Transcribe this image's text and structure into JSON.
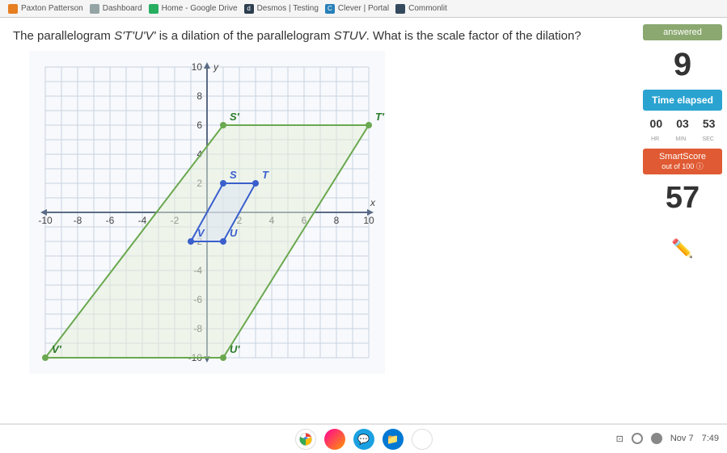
{
  "tabs": [
    {
      "label": "Paxton Patterson"
    },
    {
      "label": "Dashboard"
    },
    {
      "label": "Home - Google Drive"
    },
    {
      "label": "Desmos | Testing"
    },
    {
      "label": "Clever | Portal"
    },
    {
      "label": "Commonlit"
    }
  ],
  "question": {
    "prefix": "The parallelogram ",
    "shape1": "S'T'U'V'",
    "mid": " is a dilation of the parallelogram ",
    "shape2": "STUV",
    "suffix": ". What is the scale factor of the dilation?"
  },
  "graph": {
    "xmin": -10,
    "xmax": 10,
    "ymin": -10,
    "ymax": 10,
    "tick_step": 2,
    "grid_color": "#c9d3e0",
    "axis_color": "#5a6b85",
    "bg_color": "#f7f9fc",
    "small_poly": {
      "color": "#3a5fcd",
      "fill": "#dbe3f5",
      "points": [
        [
          1,
          2
        ],
        [
          3,
          2
        ],
        [
          1,
          -2
        ],
        [
          -1,
          -2
        ]
      ],
      "labels": {
        "S": [
          1,
          2
        ],
        "T": [
          3,
          2
        ],
        "U": [
          1,
          -2
        ],
        "V": [
          -1,
          -2
        ]
      }
    },
    "large_poly": {
      "color": "#6aa84f",
      "fill": "#e6f0d8",
      "points": [
        [
          1,
          6
        ],
        [
          10,
          6
        ],
        [
          1,
          -10
        ],
        [
          -10,
          -10
        ]
      ],
      "labels": {
        "S'": [
          1,
          6
        ],
        "T'": [
          10,
          6
        ],
        "U'": [
          1,
          -10
        ],
        "V'": [
          -10,
          -10
        ]
      }
    },
    "xlabel": "x",
    "ylabel": "y"
  },
  "sidebar": {
    "answered_label": "answered",
    "answered_color": "#8aa86f",
    "answer_value": "9",
    "time_label": "Time elapsed",
    "time_color": "#2aa3d1",
    "time": {
      "hr": "00",
      "min": "03",
      "sec": "53"
    },
    "time_units": {
      "hr": "HR",
      "min": "MIN",
      "sec": "SEC"
    },
    "smartscore_label": "SmartScore",
    "smartscore_sub": "out of 100 ⓘ",
    "smartscore_color": "#e05a33",
    "score": "57"
  },
  "tray": {
    "date": "Nov 7",
    "time": "7:49"
  }
}
